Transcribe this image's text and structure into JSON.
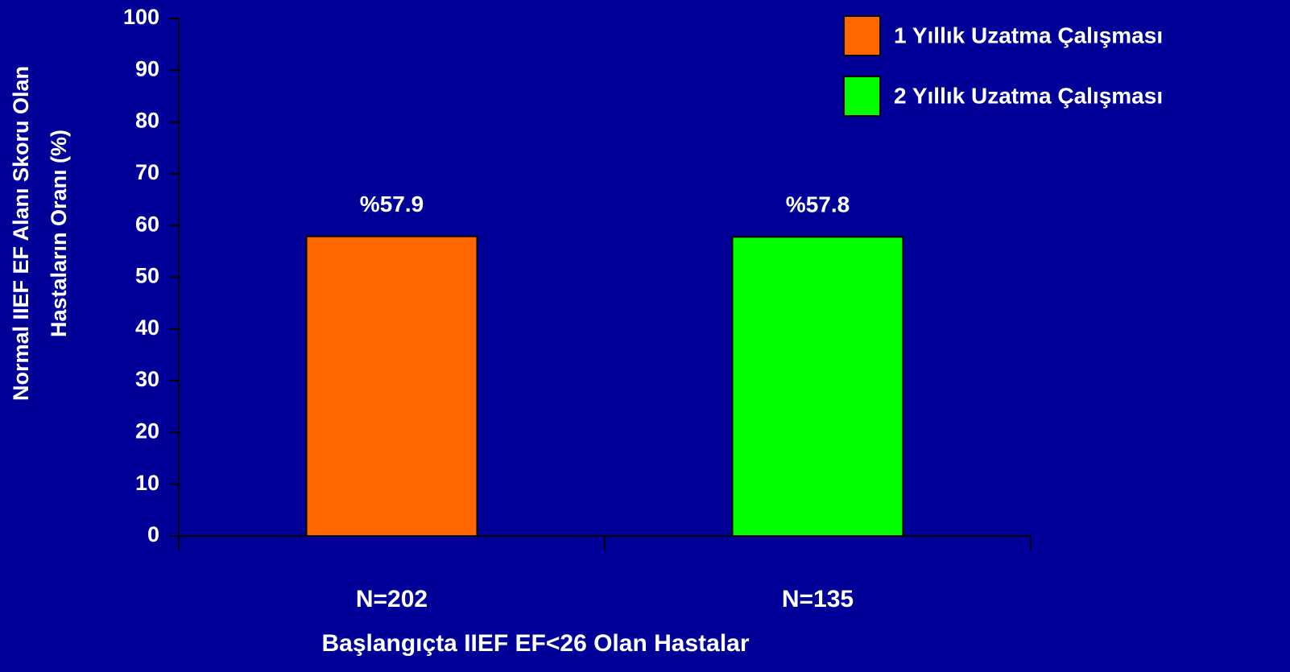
{
  "chart_data": {
    "type": "bar",
    "categories": [
      "N=202",
      "N=135"
    ],
    "series": [
      {
        "name": "1 Yıllık Uzatma Çalışması",
        "color": "#ff6600",
        "values": [
          57.9,
          null
        ],
        "value_labels": [
          "%57.9",
          null
        ]
      },
      {
        "name": "2 Yıllık Uzatma Çalışması",
        "color": "#00ff00",
        "values": [
          null,
          57.8
        ],
        "value_labels": [
          null,
          "%57.8"
        ]
      }
    ],
    "ylabel": [
      "Normal  IIEF EF Alanı Skoru Olan",
      "Hastaların Oranı (%)"
    ],
    "xlabel": "Başlangıçta IIEF EF<26 Olan Hastalar",
    "ylim": [
      0,
      100
    ],
    "yticks": [
      0,
      10,
      20,
      30,
      40,
      50,
      60,
      70,
      80,
      90,
      100
    ],
    "legend": "top-right"
  }
}
